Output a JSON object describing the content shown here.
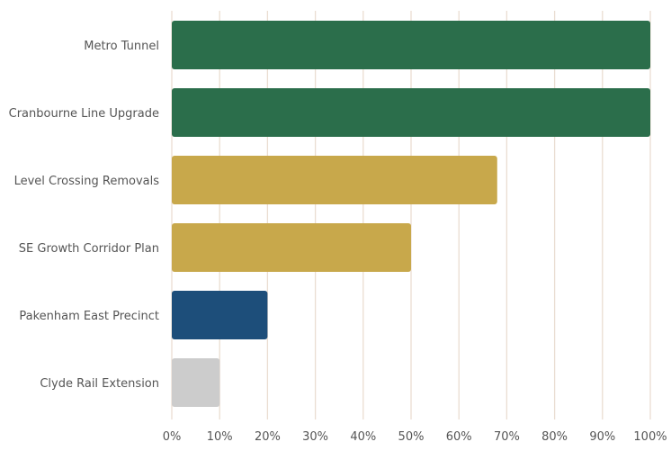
{
  "chart_data": {
    "type": "bar",
    "orientation": "horizontal",
    "title": "",
    "xlabel": "",
    "ylabel": "",
    "xlim": [
      0,
      100
    ],
    "grid": true,
    "categories": [
      "Metro Tunnel",
      "Cranbourne Line Upgrade",
      "Level Crossing Removals",
      "SE Growth Corridor Plan",
      "Pakenham East Precinct",
      "Clyde Rail Extension"
    ],
    "values": [
      100,
      100,
      68,
      50,
      20,
      10
    ],
    "colors": [
      "#2b6e4b",
      "#2b6e4b",
      "#c8a84b",
      "#c8a84b",
      "#1d4e7a",
      "#cccccc"
    ],
    "xticks": [
      "0%",
      "10%",
      "20%",
      "30%",
      "40%",
      "50%",
      "60%",
      "70%",
      "80%",
      "90%",
      "100%"
    ],
    "gridColor": "#eaddd2"
  }
}
